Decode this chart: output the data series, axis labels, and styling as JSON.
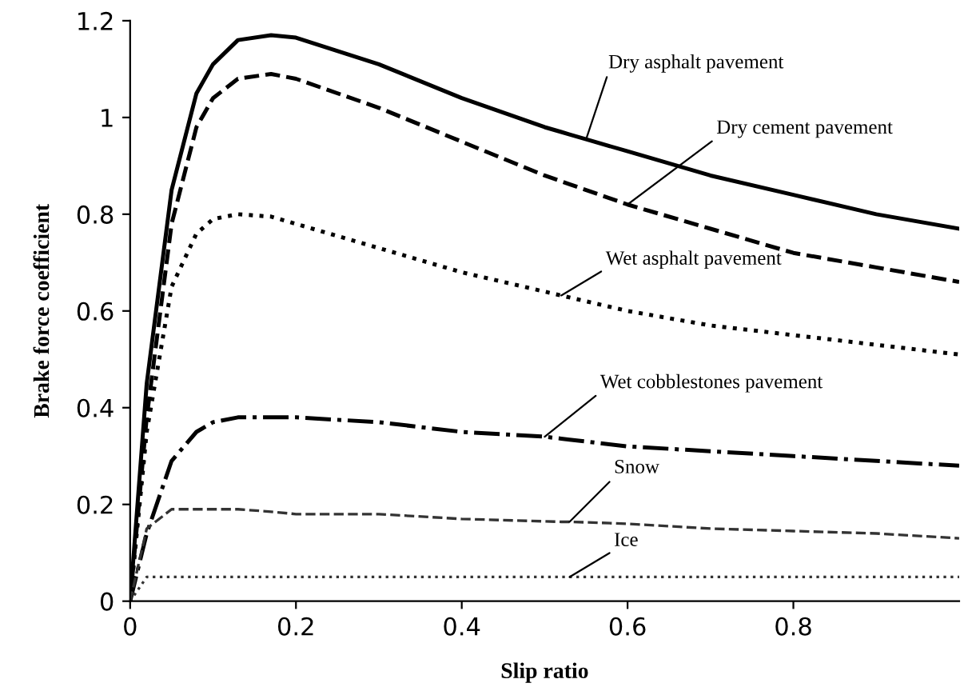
{
  "chart_data": {
    "type": "line",
    "xlabel": "Slip ratio",
    "ylabel": "Brake force coefficient",
    "x": [
      0,
      0.02,
      0.05,
      0.08,
      0.1,
      0.13,
      0.17,
      0.2,
      0.3,
      0.4,
      0.5,
      0.52,
      0.53,
      0.55,
      0.6,
      0.7,
      0.8,
      0.9,
      1.0
    ],
    "series": [
      {
        "color": "#000000",
        "line_style": "solid",
        "values": [
          0,
          0.45,
          0.85,
          1.05,
          1.11,
          1.16,
          1.17,
          1.165,
          1.11,
          1.04,
          0.98,
          0.97,
          0.965,
          0.955,
          0.93,
          0.88,
          0.84,
          0.8,
          0.77
        ]
      },
      {
        "color": "#000000",
        "line_style": "dashed",
        "values": [
          0,
          0.38,
          0.78,
          0.98,
          1.04,
          1.08,
          1.09,
          1.08,
          1.02,
          0.95,
          0.88,
          0.868,
          0.862,
          0.85,
          0.82,
          0.77,
          0.72,
          0.69,
          0.66
        ]
      },
      {
        "color": "#000000",
        "line_style": "dotted",
        "values": [
          0,
          0.35,
          0.65,
          0.76,
          0.79,
          0.8,
          0.795,
          0.78,
          0.73,
          0.68,
          0.64,
          0.632,
          0.628,
          0.62,
          0.6,
          0.57,
          0.55,
          0.53,
          0.51
        ]
      },
      {
        "color": "#000000",
        "line_style": "dashdot",
        "values": [
          0,
          0.14,
          0.29,
          0.35,
          0.37,
          0.38,
          0.38,
          0.38,
          0.37,
          0.35,
          0.34,
          0.336,
          0.334,
          0.33,
          0.32,
          0.31,
          0.3,
          0.29,
          0.28
        ]
      },
      {
        "color": "#333333",
        "line_style": "dashed",
        "values": [
          0,
          0.15,
          0.19,
          0.19,
          0.19,
          0.19,
          0.185,
          0.18,
          0.18,
          0.17,
          0.165,
          0.164,
          0.164,
          0.163,
          0.16,
          0.15,
          0.145,
          0.14,
          0.13
        ]
      },
      {
        "color": "#333333",
        "line_style": "dotted",
        "values": [
          0,
          0.05,
          0.05,
          0.05,
          0.05,
          0.05,
          0.05,
          0.05,
          0.05,
          0.05,
          0.05,
          0.05,
          0.05,
          0.05,
          0.05,
          0.05,
          0.05,
          0.05,
          0.05
        ]
      }
    ],
    "annotations": [
      {
        "text": "Dry asphalt pavement",
        "x": 0.55,
        "y": 0.955
      },
      {
        "text": "Dry cement pavement",
        "x": 0.6,
        "y": 0.82
      },
      {
        "text": "Wet asphalt pavement",
        "x": 0.52,
        "y": 0.632
      },
      {
        "text": "Wet cobblestones pavement",
        "x": 0.5,
        "y": 0.34
      },
      {
        "text": "Snow",
        "x": 0.53,
        "y": 0.164
      },
      {
        "text": "Ice",
        "x": 0.53,
        "y": 0.05
      }
    ],
    "xlim": [
      0,
      1
    ],
    "ylim": [
      0,
      1.2
    ],
    "xticks": [
      0,
      0.2,
      0.4,
      0.6,
      0.8
    ],
    "yticks": [
      0,
      0.2,
      0.4,
      0.6,
      0.8,
      {
        "value": 1,
        "label": "1"
      },
      1.2
    ],
    "grid": false,
    "legend": false,
    "marker": "none"
  }
}
